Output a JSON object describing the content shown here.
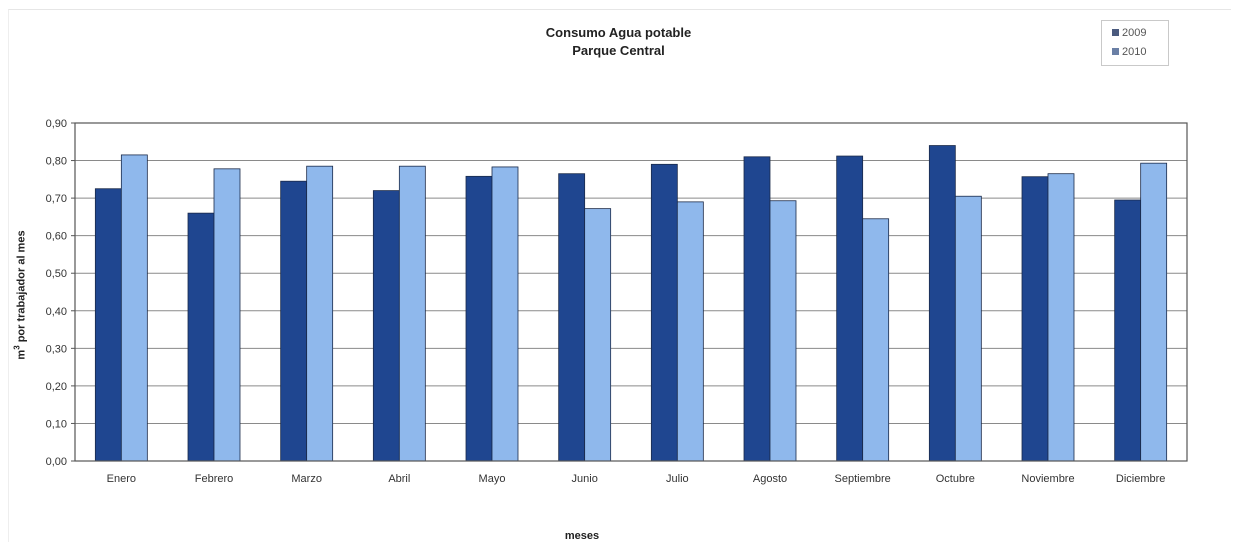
{
  "chart_data": {
    "type": "bar",
    "title": "Consumo Agua potable",
    "subtitle": "Parque Central",
    "xlabel": "meses",
    "ylabel_prefix": "m",
    "ylabel_sup": "3",
    "ylabel_rest": " por trabajador al mes",
    "categories": [
      "Enero",
      "Febrero",
      "Marzo",
      "Abril",
      "Mayo",
      "Junio",
      "Julio",
      "Agosto",
      "Septiembre",
      "Octubre",
      "Noviembre",
      "Diciembre"
    ],
    "series": [
      {
        "name": "2009",
        "color": "#1f4690",
        "values": [
          0.725,
          0.66,
          0.745,
          0.72,
          0.758,
          0.765,
          0.79,
          0.81,
          0.812,
          0.84,
          0.757,
          0.695
        ]
      },
      {
        "name": "2010",
        "color": "#8fb8ec",
        "values": [
          0.815,
          0.778,
          0.785,
          0.785,
          0.783,
          0.672,
          0.69,
          0.693,
          0.645,
          0.705,
          0.765,
          0.793
        ]
      }
    ],
    "ylim": [
      0,
      0.9
    ],
    "yticks": [
      "0,00",
      "0,10",
      "0,20",
      "0,30",
      "0,40",
      "0,50",
      "0,60",
      "0,70",
      "0,80",
      "0,90"
    ],
    "grid": true,
    "legend_position": "top-right"
  }
}
